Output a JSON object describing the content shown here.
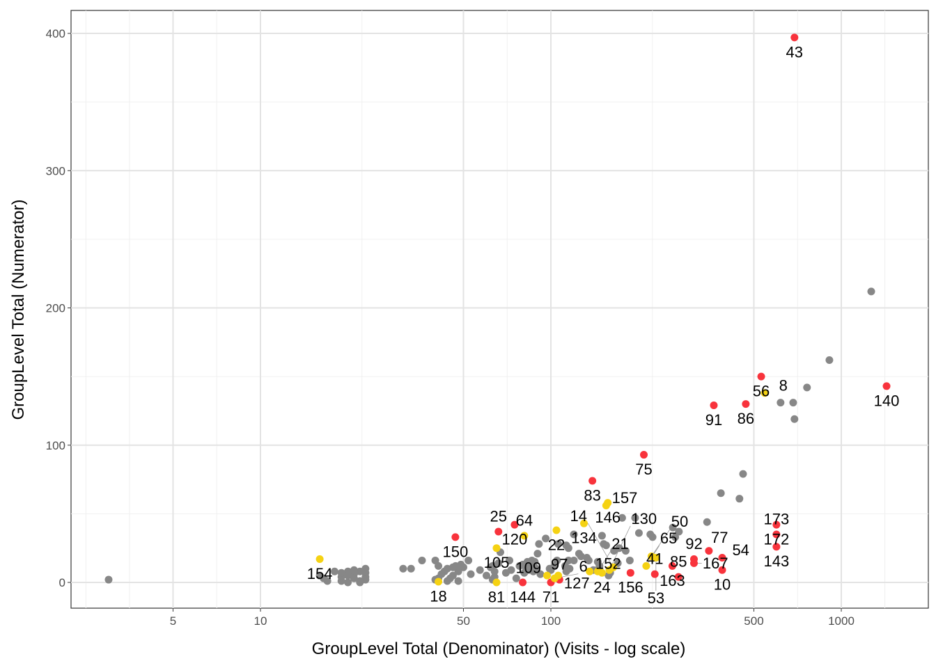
{
  "chart_data": {
    "type": "scatter",
    "title": "",
    "xlabel": "GroupLevel Total (Denominator) (Visits - log scale)",
    "ylabel": "GroupLevel Total (Numerator)",
    "x_scale": "log10",
    "xlim": [
      2.5,
      1900
    ],
    "ylim": [
      -18,
      418
    ],
    "x_ticks": [
      5,
      10,
      50,
      100,
      500,
      1000
    ],
    "y_ticks": [
      0,
      100,
      200,
      300,
      400
    ],
    "grid": true,
    "legend": "none",
    "colors": {
      "grey": "#878787",
      "red": "#F8333C",
      "yellow": "#F5D213"
    },
    "series": [
      {
        "color": "grey",
        "points": [
          [
            3,
            2
          ],
          [
            1268,
            212
          ],
          [
            910,
            162
          ],
          [
            762,
            142
          ],
          [
            618,
            131
          ],
          [
            683,
            131
          ],
          [
            690,
            119
          ],
          [
            459,
            79
          ],
          [
            446,
            61
          ],
          [
            385,
            65
          ],
          [
            345,
            44
          ],
          [
            195,
            47
          ],
          [
            201,
            36
          ],
          [
            220,
            35
          ],
          [
            224,
            33
          ],
          [
            263,
            40
          ],
          [
            276,
            37
          ],
          [
            268,
            33
          ],
          [
            176,
            47
          ],
          [
            150,
            34
          ],
          [
            152,
            28
          ],
          [
            155,
            27
          ],
          [
            172,
            25
          ],
          [
            181,
            23
          ],
          [
            165,
            23
          ],
          [
            187,
            16
          ],
          [
            170,
            14
          ],
          [
            145,
            15
          ],
          [
            147,
            12
          ],
          [
            133,
            18
          ],
          [
            125,
            21
          ],
          [
            127,
            19
          ],
          [
            120,
            16
          ],
          [
            115,
            16
          ],
          [
            112,
            12
          ],
          [
            116,
            10
          ],
          [
            113,
            8
          ],
          [
            120,
            35
          ],
          [
            113,
            27
          ],
          [
            115,
            25
          ],
          [
            106,
            28
          ],
          [
            105,
            16
          ],
          [
            103,
            12
          ],
          [
            99,
            10
          ],
          [
            100,
            9
          ],
          [
            96,
            32
          ],
          [
            91,
            28
          ],
          [
            90,
            21
          ],
          [
            88,
            15
          ],
          [
            85,
            13
          ],
          [
            86,
            16
          ],
          [
            83,
            15
          ],
          [
            82,
            11
          ],
          [
            84,
            9
          ],
          [
            87,
            8
          ],
          [
            92,
            6
          ],
          [
            89,
            10
          ],
          [
            80,
            13
          ],
          [
            81,
            7
          ],
          [
            78,
            12
          ],
          [
            76,
            3
          ],
          [
            72,
            16
          ],
          [
            73,
            9
          ],
          [
            70,
            7
          ],
          [
            67,
            22
          ],
          [
            66,
            14
          ],
          [
            64,
            8
          ],
          [
            63,
            12
          ],
          [
            62,
            11
          ],
          [
            63,
            2
          ],
          [
            64,
            4
          ],
          [
            60,
            5
          ],
          [
            57,
            9
          ],
          [
            52,
            16
          ],
          [
            53,
            6
          ],
          [
            50,
            11
          ],
          [
            49,
            13
          ],
          [
            48,
            8
          ],
          [
            47,
            12
          ],
          [
            46,
            11
          ],
          [
            46,
            5
          ],
          [
            45,
            3
          ],
          [
            44,
            10
          ],
          [
            43,
            8
          ],
          [
            42,
            6
          ],
          [
            41,
            3
          ],
          [
            40,
            2
          ],
          [
            41,
            12
          ],
          [
            40,
            16
          ],
          [
            48,
            1
          ],
          [
            44,
            1
          ],
          [
            36,
            16
          ],
          [
            33,
            10
          ],
          [
            31,
            10
          ],
          [
            23,
            10
          ],
          [
            23,
            7
          ],
          [
            23,
            4
          ],
          [
            23,
            2
          ],
          [
            22,
            1
          ],
          [
            22,
            8
          ],
          [
            21,
            6
          ],
          [
            21,
            3
          ],
          [
            20,
            0
          ],
          [
            20,
            8
          ],
          [
            20,
            5
          ],
          [
            19,
            1
          ],
          [
            19,
            4
          ],
          [
            19,
            7
          ],
          [
            18,
            8
          ],
          [
            17,
            1
          ],
          [
            16.5,
            3
          ],
          [
            16,
            5
          ],
          [
            22,
            0
          ],
          [
            21,
            9
          ],
          [
            158,
            5
          ],
          [
            160,
            7
          ],
          [
            135,
            16
          ],
          [
            140,
            9
          ]
        ]
      },
      {
        "color": "red",
        "points": [
          {
            "x": 690,
            "y": 397,
            "label": "43"
          },
          {
            "x": 1432,
            "y": 143,
            "label": "140"
          },
          {
            "x": 530,
            "y": 150,
            "label": "56"
          },
          {
            "x": 364,
            "y": 129,
            "label": "91"
          },
          {
            "x": 469,
            "y": 130,
            "label": "86"
          },
          {
            "x": 209,
            "y": 93,
            "label": "75"
          },
          {
            "x": 139,
            "y": 74,
            "label": "83"
          },
          {
            "x": 75,
            "y": 42,
            "label": "120"
          },
          {
            "x": 66,
            "y": 37,
            "label": "25"
          },
          {
            "x": 46.9,
            "y": 33,
            "label": "150"
          },
          {
            "x": 80,
            "y": 0,
            "label": "144"
          },
          {
            "x": 100,
            "y": 0,
            "label": "71"
          },
          {
            "x": 107,
            "y": 2,
            "label": "97"
          },
          {
            "x": 188,
            "y": 7,
            "label": "156"
          },
          {
            "x": 262,
            "y": 12,
            "label": "163"
          },
          {
            "x": 275,
            "y": 4,
            "label": "85"
          },
          {
            "x": 311,
            "y": 17,
            "label": "92"
          },
          {
            "x": 311,
            "y": 14,
            "label": "167"
          },
          {
            "x": 350,
            "y": 23,
            "label": "77"
          },
          {
            "x": 389,
            "y": 18,
            "label": "54"
          },
          {
            "x": 389,
            "y": 9,
            "label": "10"
          },
          {
            "x": 598,
            "y": 42,
            "label": "172"
          },
          {
            "x": 598,
            "y": 35,
            "label": "173"
          },
          {
            "x": 598,
            "y": 26,
            "label": "143"
          },
          {
            "x": 228,
            "y": 6,
            "label": "41"
          }
        ]
      },
      {
        "color": "yellow",
        "points": [
          {
            "x": 545,
            "y": 138,
            "label": "8"
          },
          {
            "x": 157,
            "y": 58,
            "label": "146"
          },
          {
            "x": 155,
            "y": 56,
            "label": "157"
          },
          {
            "x": 130,
            "y": 43,
            "label": "134"
          },
          {
            "x": 104.5,
            "y": 38,
            "label": "22"
          },
          {
            "x": 81,
            "y": 34,
            "label": "64"
          },
          {
            "x": 65,
            "y": 25,
            "label": "105"
          },
          {
            "x": 16,
            "y": 17,
            "label": "154"
          },
          {
            "x": 41,
            "y": 0.5,
            "label": "18"
          },
          {
            "x": 65,
            "y": 0,
            "label": "81"
          },
          {
            "x": 97,
            "y": 5,
            "label": "109"
          },
          {
            "x": 106,
            "y": 5,
            "label": "127"
          },
          {
            "x": 103,
            "y": 3,
            "label": "6"
          },
          {
            "x": 136,
            "y": 8,
            "label": "152"
          },
          {
            "x": 145,
            "y": 8,
            "label": "21"
          },
          {
            "x": 150,
            "y": 7,
            "label": "24"
          },
          {
            "x": 159,
            "y": 9,
            "label": "130"
          },
          {
            "x": 164,
            "y": 11,
            "label": "14"
          },
          {
            "x": 213,
            "y": 12,
            "label": "65"
          },
          {
            "x": 222,
            "y": 19,
            "label": "50"
          },
          {
            "x": 230,
            "y": 18,
            "label": "53"
          }
        ]
      }
    ]
  }
}
